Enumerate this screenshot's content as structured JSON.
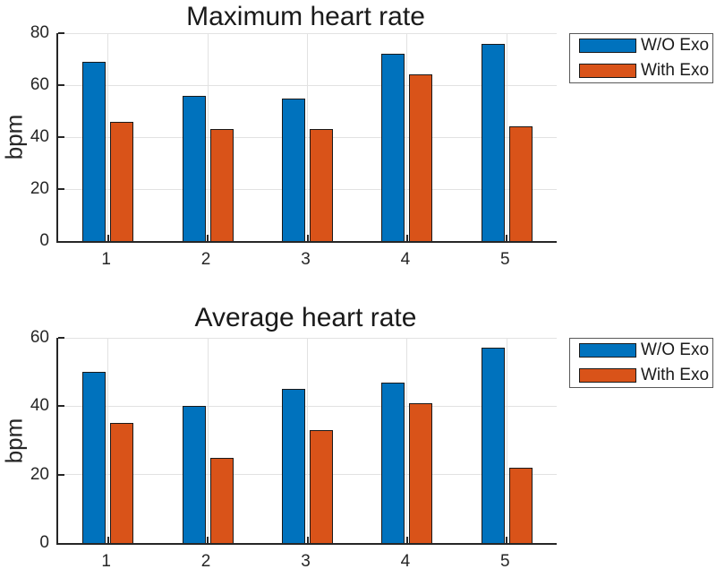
{
  "figure": {
    "background": "#ffffff"
  },
  "colors": {
    "axis": "#262626",
    "grid": "#e2e2e2",
    "bar_edge": "#1a1a1a",
    "legend_border": "#595959",
    "series_blue": "#0072BD",
    "series_orange": "#D95319"
  },
  "chart_data": [
    {
      "type": "bar",
      "title": "Maximum heart rate",
      "xlabel": "",
      "ylabel": "bpm",
      "categories": [
        "1",
        "2",
        "3",
        "4",
        "5"
      ],
      "series": [
        {
          "name": "W/O Exo",
          "color": "#0072BD",
          "values": [
            69,
            56,
            55,
            72,
            76
          ]
        },
        {
          "name": "With Exo",
          "color": "#D95319",
          "values": [
            46,
            43,
            43,
            64,
            44
          ]
        }
      ],
      "ylim": [
        0,
        80
      ],
      "yticks": [
        0,
        20,
        40,
        60,
        80
      ],
      "grid": "both",
      "legend_position": "outside-top-right"
    },
    {
      "type": "bar",
      "title": "Average heart rate",
      "xlabel": "",
      "ylabel": "bpm",
      "categories": [
        "1",
        "2",
        "3",
        "4",
        "5"
      ],
      "series": [
        {
          "name": "W/O Exo",
          "color": "#0072BD",
          "values": [
            50,
            40,
            45,
            47,
            57
          ]
        },
        {
          "name": "With Exo",
          "color": "#D95319",
          "values": [
            35,
            25,
            33,
            41,
            22
          ]
        }
      ],
      "ylim": [
        0,
        60
      ],
      "yticks": [
        0,
        20,
        40,
        60
      ],
      "grid": "both",
      "legend_position": "outside-top-right"
    }
  ]
}
